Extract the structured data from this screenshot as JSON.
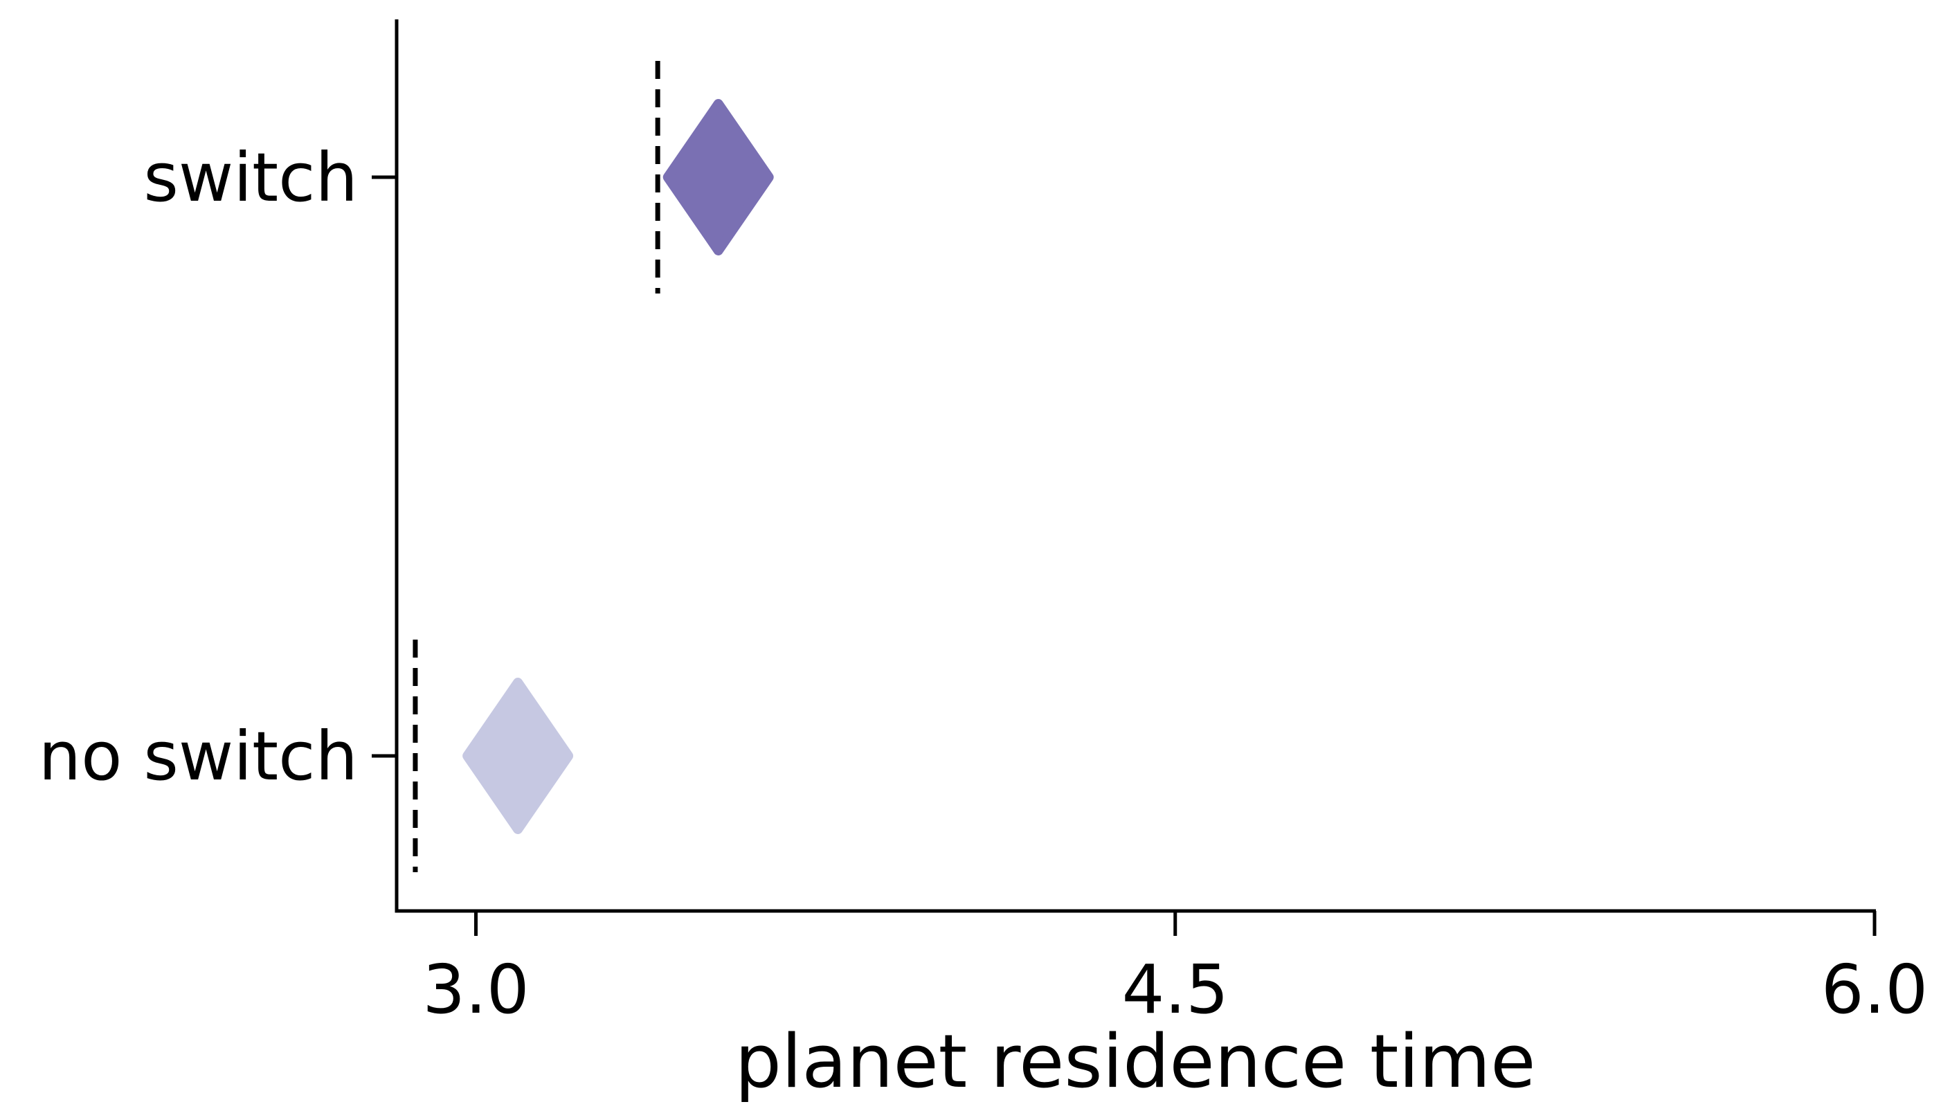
{
  "chart_data": {
    "type": "scatter",
    "marker": "diamond",
    "xlabel": "planet residence time",
    "ylabel": "",
    "title": "",
    "xlim": [
      2.83,
      6.0
    ],
    "x_ticks": [
      3.0,
      4.5,
      6.0
    ],
    "x_tick_labels": [
      "3.0",
      "4.5",
      "6.0"
    ],
    "categories": [
      "switch",
      "no switch"
    ],
    "points": [
      {
        "category": "switch",
        "x": 3.52,
        "color": "#7a70b3"
      },
      {
        "category": "no switch",
        "x": 3.09,
        "color": "#c6c8e2"
      }
    ],
    "reference_lines": [
      {
        "category": "switch",
        "x": 3.39,
        "style": "dashed"
      },
      {
        "category": "no switch",
        "x": 2.87,
        "style": "dashed"
      }
    ],
    "grid": false,
    "legend": "none",
    "colors": {
      "axis": "#000000",
      "switch": "#7a70b3",
      "no_switch": "#c6c8e2"
    }
  }
}
